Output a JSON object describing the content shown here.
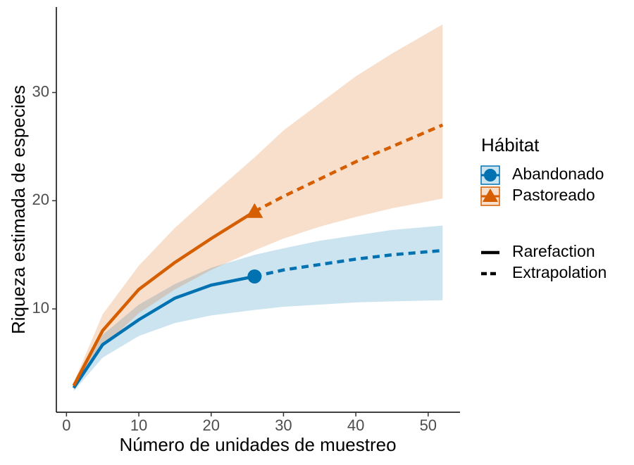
{
  "chart_data": {
    "type": "rarefaction",
    "x_label": "Número de unidades de muestreo",
    "y_label": "Riqueza estimada de especies",
    "legend_title": "Hábitat",
    "xlim": [
      -1.4,
      54.4
    ],
    "xticks": [
      0,
      10,
      20,
      30,
      40,
      50
    ],
    "ylim": [
      0.45,
      37.9
    ],
    "yticks": [
      10,
      20,
      30
    ],
    "x": [
      1,
      5,
      10,
      15,
      20,
      26,
      30,
      35,
      40,
      45,
      52
    ],
    "observed_x": 26,
    "linetypes": [
      {
        "name": "Rarefaction",
        "dash": "solid"
      },
      {
        "name": "Extrapolation",
        "dash": "dashed"
      }
    ],
    "series": [
      {
        "name": "Abandonado",
        "color": "#0072B2",
        "marker": "circle",
        "values": [
          2.7,
          6.7,
          9.0,
          11.0,
          12.2,
          13.0,
          13.6,
          14.1,
          14.6,
          15.0,
          15.4
        ],
        "lower": [
          2.4,
          5.5,
          7.5,
          8.7,
          9.4,
          9.9,
          10.2,
          10.4,
          10.6,
          10.7,
          10.8
        ],
        "upper": [
          2.9,
          7.6,
          10.4,
          12.3,
          13.8,
          15.0,
          15.6,
          16.3,
          16.8,
          17.3,
          17.7
        ]
      },
      {
        "name": "Pastoreado",
        "color": "#D55E00",
        "marker": "triangle",
        "values": [
          2.9,
          8.0,
          11.8,
          14.3,
          16.5,
          19.0,
          20.4,
          22.0,
          23.6,
          25.0,
          27.0
        ],
        "lower": [
          2.6,
          6.5,
          9.6,
          11.8,
          13.6,
          15.4,
          16.5,
          17.6,
          18.5,
          19.3,
          20.2
        ],
        "upper": [
          3.2,
          9.5,
          14.0,
          17.5,
          20.5,
          24.0,
          26.5,
          29.0,
          31.5,
          33.6,
          36.3
        ]
      }
    ]
  }
}
